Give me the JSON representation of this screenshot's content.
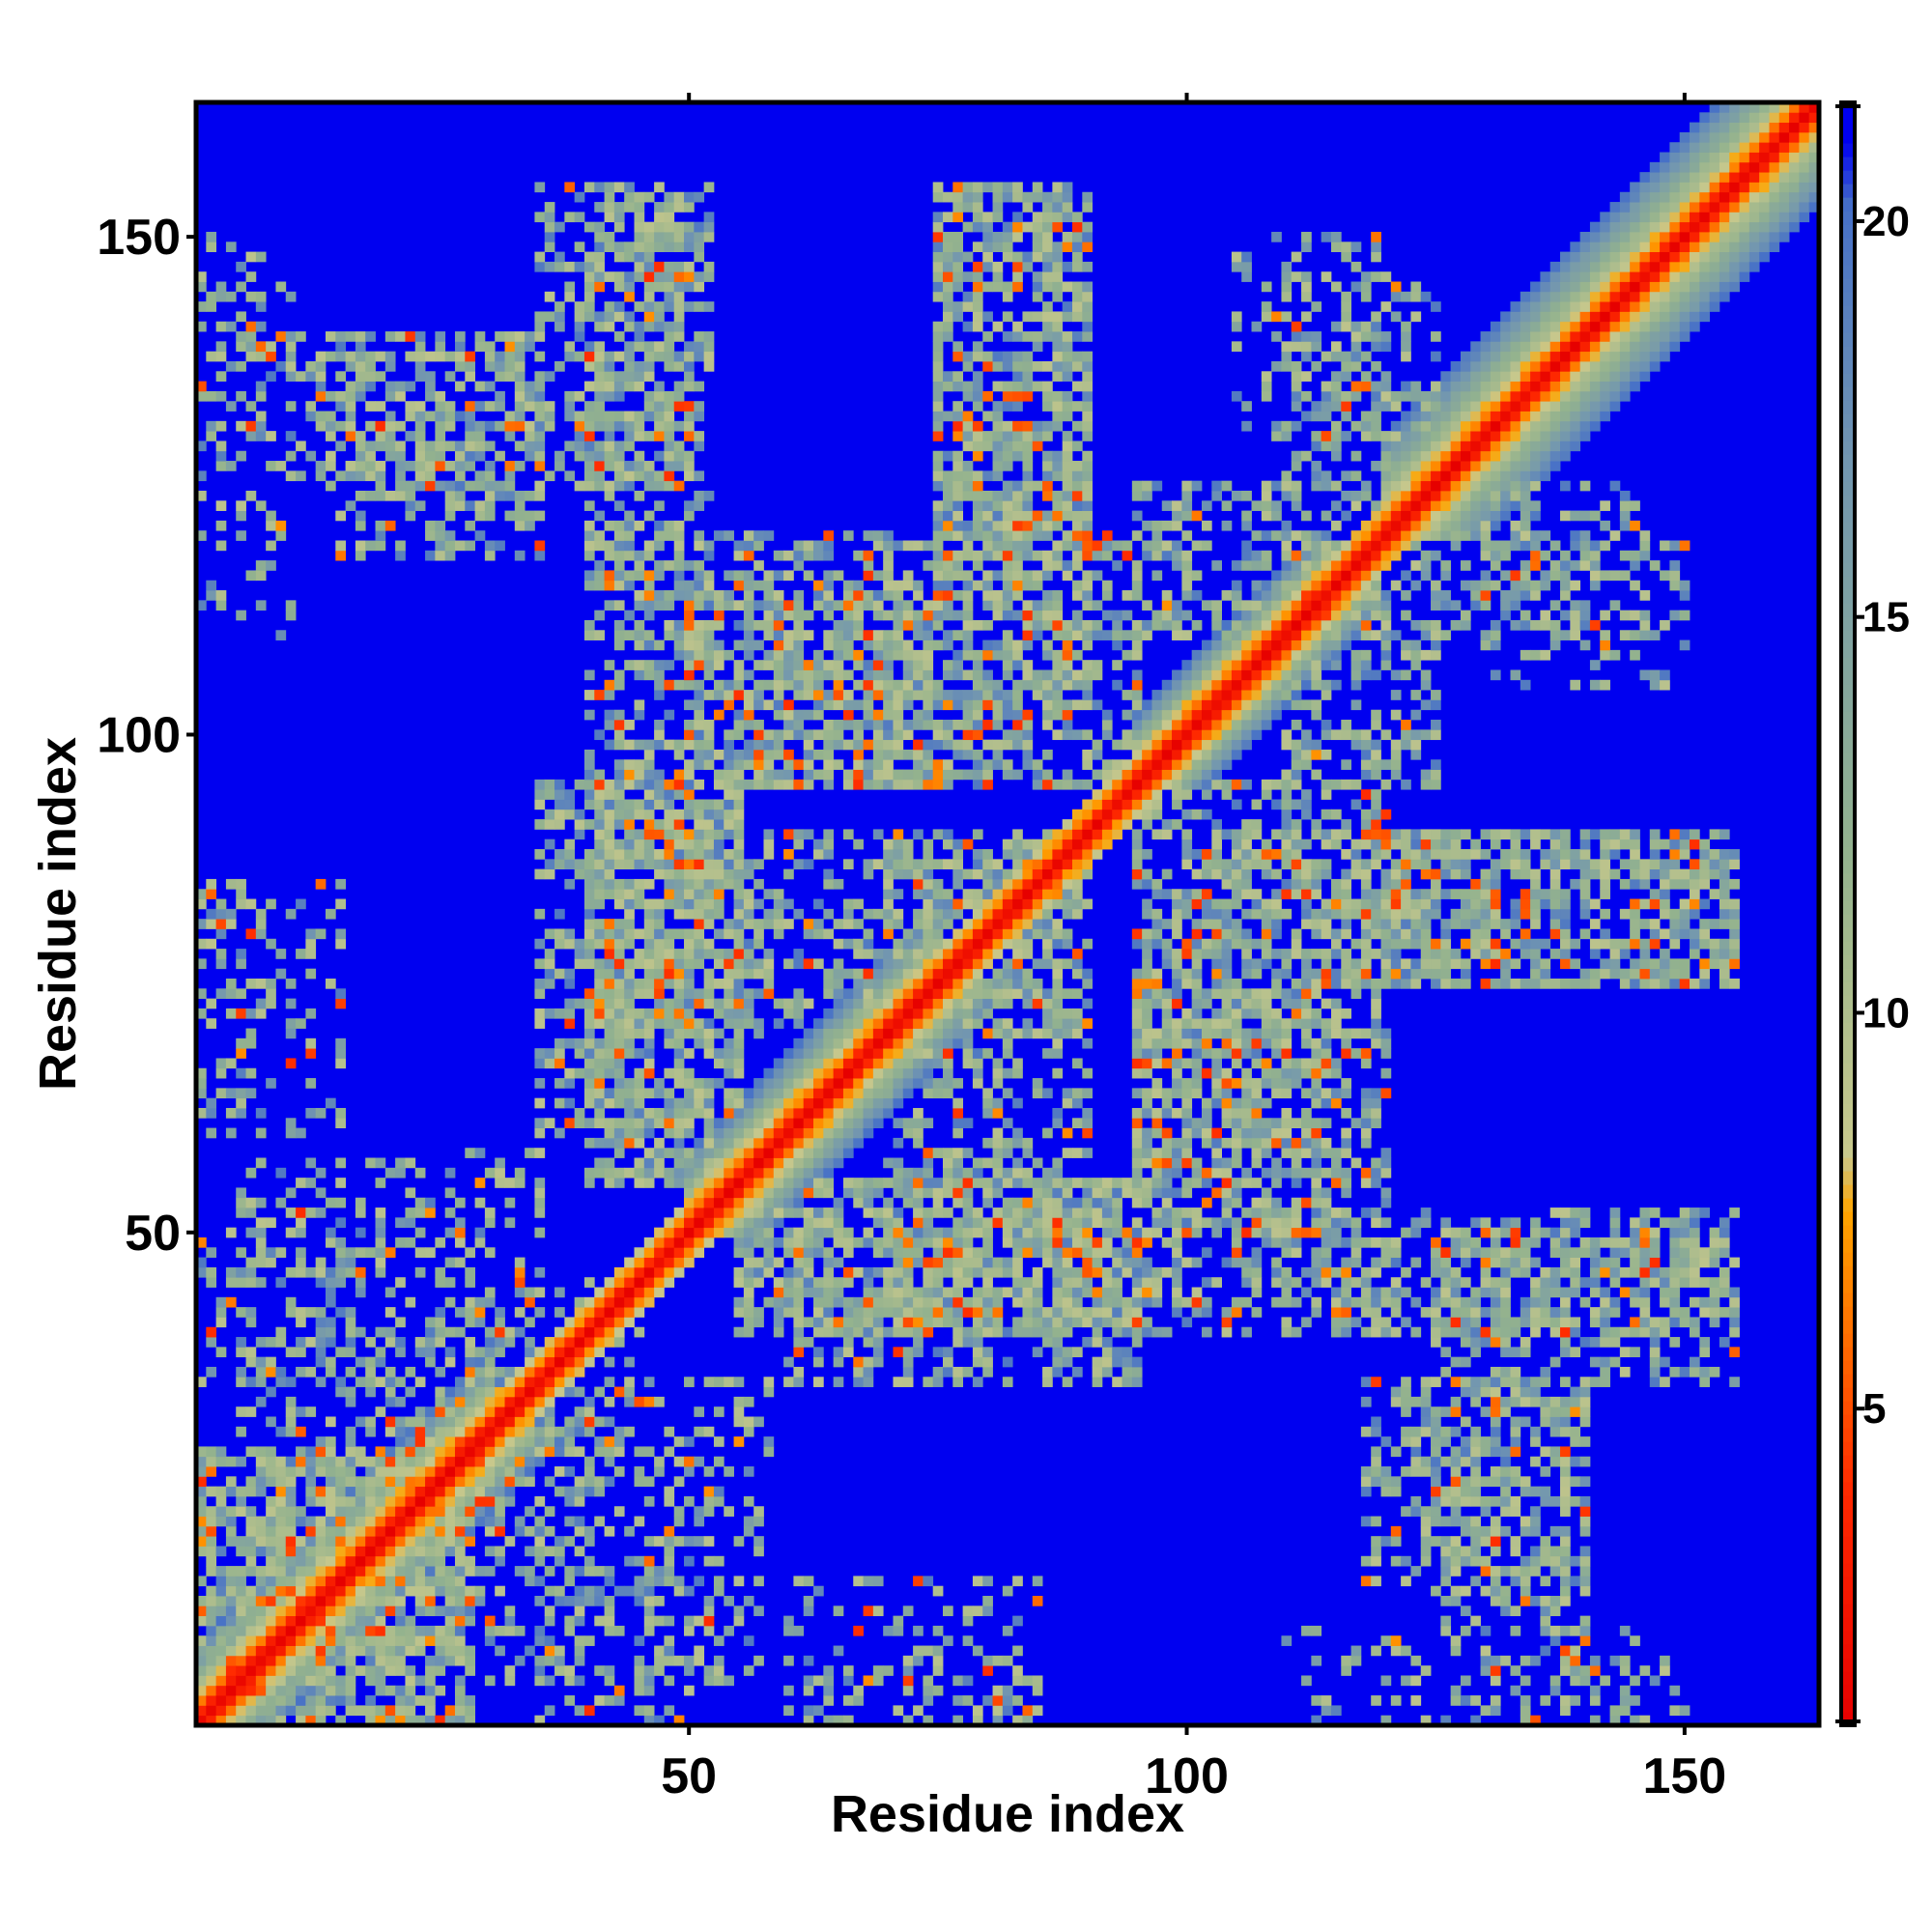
{
  "chart_data": {
    "type": "heatmap",
    "title": "",
    "xlabel": "Residue index",
    "ylabel": "Residue index",
    "xlim": [
      1,
      163
    ],
    "ylim": [
      1,
      163
    ],
    "x_ticks": [
      50,
      100,
      150
    ],
    "y_ticks": [
      50,
      100,
      150
    ],
    "n_residues": 163,
    "colorbar": {
      "ticks": [
        5,
        10,
        15,
        20
      ],
      "range": [
        1,
        21.5
      ],
      "stops": [
        {
          "value": 1.0,
          "color": "#e60000"
        },
        {
          "value": 4.0,
          "color": "#ff2a00"
        },
        {
          "value": 7.5,
          "color": "#ffa500"
        },
        {
          "value": 8.2,
          "color": "#c8c88c"
        },
        {
          "value": 12.0,
          "color": "#93b28e"
        },
        {
          "value": 17.0,
          "color": "#7296b0"
        },
        {
          "value": 20.2,
          "color": "#4670c8"
        },
        {
          "value": 21.0,
          "color": "#0000f0"
        }
      ],
      "background_color": "#0000f0"
    },
    "diagonal_bands": [
      {
        "from": 1,
        "to": 163,
        "half_width": 3.0
      },
      {
        "from": 120,
        "to": 163,
        "half_width": 10.0
      },
      {
        "from": 50,
        "to": 75,
        "half_width": 8.0
      },
      {
        "from": 1,
        "to": 30,
        "half_width": 8.0
      },
      {
        "from": 95,
        "to": 113,
        "half_width": 7.0
      }
    ],
    "contact_regions": [
      {
        "x": [
          1,
          28
        ],
        "y": [
          1,
          28
        ],
        "contact_density": 0.45
      },
      {
        "x": [
          5,
          45
        ],
        "y": [
          20,
          42
        ],
        "contact_density": 0.3
      },
      {
        "x": [
          5,
          35
        ],
        "y": [
          45,
          58
        ],
        "contact_density": 0.3
      },
      {
        "x": [
          1,
          8
        ],
        "y": [
          60,
          85
        ],
        "contact_density": 0.25
      },
      {
        "x": [
          35,
          55
        ],
        "y": [
          60,
          95
        ],
        "contact_density": 0.5
      },
      {
        "x": [
          40,
          70
        ],
        "y": [
          95,
          120
        ],
        "contact_density": 0.45
      },
      {
        "x": [
          35,
          50
        ],
        "y": [
          125,
          155
        ],
        "contact_density": 0.45
      },
      {
        "x": [
          10,
          35
        ],
        "y": [
          125,
          140
        ],
        "contact_density": 0.4
      },
      {
        "x": [
          1,
          7
        ],
        "y": [
          130,
          150
        ],
        "contact_density": 0.25
      },
      {
        "x": [
          55,
          95
        ],
        "y": [
          40,
          55
        ],
        "contact_density": 0.5
      },
      {
        "x": [
          70,
          90
        ],
        "y": [
          40,
          90
        ],
        "contact_density": 0.45
      },
      {
        "x": [
          70,
          95
        ],
        "y": [
          95,
          120
        ],
        "contact_density": 0.45
      },
      {
        "x": [
          75,
          90
        ],
        "y": [
          120,
          155
        ],
        "contact_density": 0.45
      },
      {
        "x": [
          95,
          115
        ],
        "y": [
          50,
          75
        ],
        "contact_density": 0.5
      },
      {
        "x": [
          100,
          125
        ],
        "y": [
          75,
          90
        ],
        "contact_density": 0.45
      },
      {
        "x": [
          110,
          125
        ],
        "y": [
          95,
          120
        ],
        "contact_density": 0.45
      },
      {
        "x": [
          110,
          125
        ],
        "y": [
          125,
          145
        ],
        "contact_density": 0.4
      },
      {
        "x": [
          115,
          155
        ],
        "y": [
          40,
          52
        ],
        "contact_density": 0.45
      },
      {
        "x": [
          118,
          155
        ],
        "y": [
          75,
          90
        ],
        "contact_density": 0.45
      },
      {
        "x": [
          118,
          140
        ],
        "y": [
          15,
          35
        ],
        "contact_density": 0.4
      },
      {
        "x": [
          60,
          85
        ],
        "y": [
          1,
          15
        ],
        "contact_density": 0.2
      },
      {
        "x": [
          110,
          145
        ],
        "y": [
          1,
          10
        ],
        "contact_density": 0.2
      },
      {
        "x": [
          35,
          50
        ],
        "y": [
          1,
          20
        ],
        "contact_density": 0.25
      },
      {
        "x": [
          130,
          150
        ],
        "y": [
          105,
          120
        ],
        "contact_density": 0.3
      }
    ],
    "grid": false,
    "legend": "colorbar-right"
  }
}
